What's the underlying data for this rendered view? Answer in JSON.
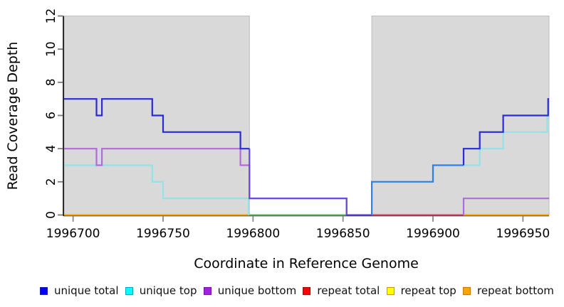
{
  "labels": {
    "y_title": "Read Coverage Depth",
    "x_title": "Coordinate in Reference Genome"
  },
  "axes": {
    "x": {
      "min": 1996695,
      "max": 1996964.5,
      "ticks": [
        1996700,
        1996750,
        1996800,
        1996850,
        1996900,
        1996950
      ]
    },
    "y": {
      "min": 0,
      "max": 12,
      "ticks": [
        0,
        2,
        4,
        6,
        8,
        10,
        12
      ]
    }
  },
  "plot": {
    "shade_color": "#d9d9d9",
    "shade_border": "#bdbdbd",
    "shaded_regions": [
      [
        1996695,
        1996798
      ],
      [
        1996866,
        1996964.5
      ]
    ],
    "segments": [
      {
        "name": "repeat-bottom-line-left",
        "color": "#FFA500",
        "points": [
          [
            1996695,
            0
          ],
          [
            1996798,
            0
          ]
        ]
      },
      {
        "name": "overlap-top-repeat-line",
        "color": "#6ABF6A",
        "points": [
          [
            1996798,
            0
          ],
          [
            1996852,
            0
          ]
        ]
      },
      {
        "name": "overlap-repeat-line",
        "color": "#D94A6E",
        "points": [
          [
            1996866,
            0
          ],
          [
            1996917,
            0
          ]
        ]
      },
      {
        "name": "repeat-bottom-line-right",
        "color": "#FFA500",
        "points": [
          [
            1996917,
            0
          ],
          [
            1996964.5,
            0
          ]
        ]
      },
      {
        "name": "unique-top-line-left",
        "color": "#92E2E6",
        "points": [
          [
            1996695,
            3
          ],
          [
            1996744,
            3
          ],
          [
            1996744,
            2
          ],
          [
            1996750,
            2
          ],
          [
            1996750,
            1
          ],
          [
            1996797.5,
            1
          ],
          [
            1996797.5,
            0
          ]
        ]
      },
      {
        "name": "unique-top-line-right",
        "color": "#92E2E6",
        "points": [
          [
            1996917,
            3
          ],
          [
            1996926,
            3
          ],
          [
            1996926,
            4
          ],
          [
            1996939,
            4
          ],
          [
            1996939,
            5
          ],
          [
            1996963.5,
            5
          ],
          [
            1996963.5,
            6
          ],
          [
            1996964.5,
            6
          ]
        ]
      },
      {
        "name": "unique-bottom-line-left",
        "color": "#B06CD8",
        "points": [
          [
            1996695,
            4
          ],
          [
            1996713,
            4
          ],
          [
            1996713,
            3
          ],
          [
            1996716,
            3
          ],
          [
            1996716,
            4
          ],
          [
            1996793,
            4
          ],
          [
            1996793,
            3
          ],
          [
            1996798,
            3
          ],
          [
            1996798,
            1
          ],
          [
            1996852,
            1
          ],
          [
            1996852,
            0
          ]
        ]
      },
      {
        "name": "unique-bottom-line-right",
        "color": "#B06CD8",
        "points": [
          [
            1996917,
            0
          ],
          [
            1996917,
            1
          ],
          [
            1996964.5,
            1
          ]
        ]
      },
      {
        "name": "total-plus-bottom-line",
        "color": "#6647E0",
        "points": [
          [
            1996798,
            4
          ],
          [
            1996798,
            1
          ],
          [
            1996852,
            1
          ],
          [
            1996852,
            0
          ],
          [
            1996866,
            0
          ]
        ]
      },
      {
        "name": "total-plus-top-line",
        "color": "#2E80E8",
        "points": [
          [
            1996866,
            0
          ],
          [
            1996866,
            2
          ],
          [
            1996900,
            2
          ],
          [
            1996900,
            3
          ],
          [
            1996917,
            3
          ]
        ]
      },
      {
        "name": "unique-total-line-left",
        "color": "#2A2ADD",
        "points": [
          [
            1996695,
            7
          ],
          [
            1996713,
            7
          ],
          [
            1996713,
            6
          ],
          [
            1996716,
            6
          ],
          [
            1996716,
            7
          ],
          [
            1996744,
            7
          ],
          [
            1996744,
            6
          ],
          [
            1996750,
            6
          ],
          [
            1996750,
            5
          ],
          [
            1996793,
            5
          ],
          [
            1996793,
            4
          ],
          [
            1996798,
            4
          ]
        ]
      },
      {
        "name": "unique-total-line-right",
        "color": "#2A2ADD",
        "points": [
          [
            1996917,
            3
          ],
          [
            1996917,
            4
          ],
          [
            1996926,
            4
          ],
          [
            1996926,
            5
          ],
          [
            1996939,
            5
          ],
          [
            1996939,
            6
          ],
          [
            1996964,
            6
          ],
          [
            1996964,
            7
          ],
          [
            1996964.5,
            7
          ]
        ]
      }
    ]
  },
  "legend": {
    "items": [
      {
        "label": "unique total",
        "fill": "#0000FF",
        "border": "#1A1AB0"
      },
      {
        "label": "unique top",
        "fill": "#00FFFF",
        "border": "#00A8B8"
      },
      {
        "label": "unique bottom",
        "fill": "#A020E0",
        "border": "#7A10A8"
      },
      {
        "label": "repeat total",
        "fill": "#FF0000",
        "border": "#A80000"
      },
      {
        "label": "repeat top",
        "fill": "#FFFF00",
        "border": "#C89800"
      },
      {
        "label": "repeat bottom",
        "fill": "#FFA500",
        "border": "#C87800"
      }
    ]
  },
  "chart_data": {
    "type": "line",
    "subtype": "step",
    "title": "",
    "xlabel": "Coordinate in Reference Genome",
    "ylabel": "Read Coverage Depth",
    "xlim": [
      1996695,
      1996964.5
    ],
    "ylim": [
      0,
      12
    ],
    "x_ticks": [
      1996700,
      1996750,
      1996800,
      1996850,
      1996900,
      1996950
    ],
    "y_ticks": [
      0,
      2,
      4,
      6,
      8,
      10,
      12
    ],
    "grid": false,
    "legend_position": "bottom",
    "shaded_x_regions": [
      [
        1996695,
        1996798
      ],
      [
        1996866,
        1996964.5
      ]
    ],
    "series": [
      {
        "name": "unique total",
        "color": "#0000FF",
        "step_points": [
          [
            1996695,
            7
          ],
          [
            1996713,
            6
          ],
          [
            1996716,
            7
          ],
          [
            1996744,
            6
          ],
          [
            1996750,
            5
          ],
          [
            1996793,
            4
          ],
          [
            1996798,
            1
          ],
          [
            1996852,
            0
          ],
          [
            1996866,
            2
          ],
          [
            1996900,
            3
          ],
          [
            1996917,
            4
          ],
          [
            1996926,
            5
          ],
          [
            1996939,
            6
          ],
          [
            1996964,
            7
          ]
        ]
      },
      {
        "name": "unique top",
        "color": "#00FFFF",
        "step_points": [
          [
            1996695,
            3
          ],
          [
            1996744,
            2
          ],
          [
            1996750,
            1
          ],
          [
            1996798,
            0
          ],
          [
            1996866,
            2
          ],
          [
            1996900,
            3
          ],
          [
            1996926,
            4
          ],
          [
            1996939,
            5
          ],
          [
            1996964,
            6
          ]
        ]
      },
      {
        "name": "unique bottom",
        "color": "#A020E0",
        "step_points": [
          [
            1996695,
            4
          ],
          [
            1996713,
            3
          ],
          [
            1996716,
            4
          ],
          [
            1996793,
            3
          ],
          [
            1996798,
            1
          ],
          [
            1996852,
            0
          ],
          [
            1996917,
            1
          ]
        ]
      },
      {
        "name": "repeat total",
        "color": "#FF0000",
        "step_points": [
          [
            1996695,
            0
          ]
        ]
      },
      {
        "name": "repeat top",
        "color": "#FFFF00",
        "step_points": [
          [
            1996695,
            0
          ]
        ]
      },
      {
        "name": "repeat bottom",
        "color": "#FFA500",
        "step_points": [
          [
            1996695,
            0
          ]
        ]
      }
    ]
  }
}
